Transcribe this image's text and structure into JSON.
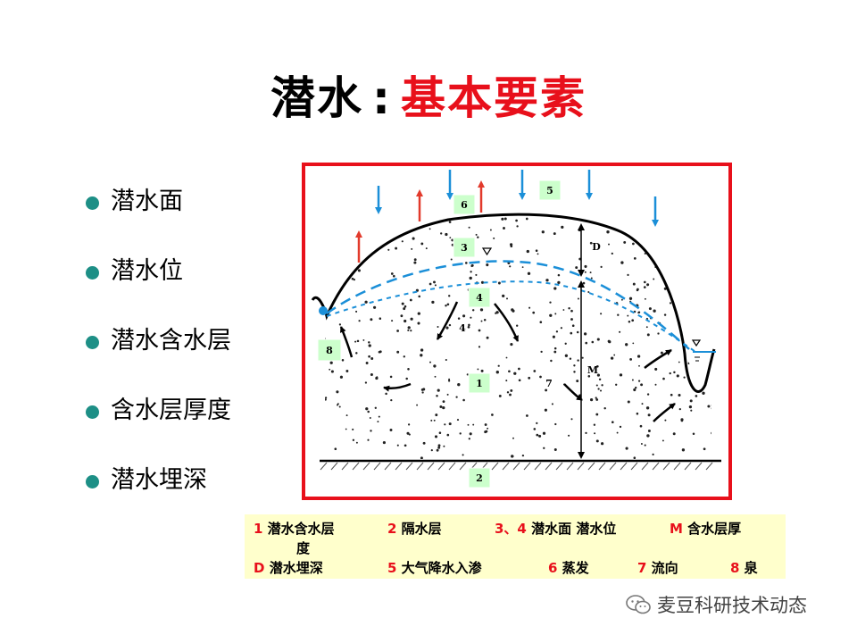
{
  "title": {
    "part1": "潜水",
    "separator": ":",
    "part2": "基本要素"
  },
  "bullets": [
    "潜水面",
    "潜水位",
    "潜水含水层",
    "含水层厚度",
    "潜水埋深"
  ],
  "diagram": {
    "labels": {
      "l1": "1",
      "l2": "2",
      "l3": "3",
      "l4": "4",
      "l4b": "4",
      "l5": "5",
      "l6": "6",
      "l7": "7",
      "l8": "8",
      "d": "D",
      "m": "M"
    }
  },
  "legend": {
    "items": [
      {
        "num": "1",
        "text": "潜水含水层"
      },
      {
        "num": "2",
        "text": "隔水层"
      },
      {
        "num": "3、4",
        "text": "潜水面 潜水位"
      },
      {
        "num": "M",
        "text": "含水层厚"
      },
      {
        "num": "",
        "text": "度"
      },
      {
        "num": "D",
        "text": "潜水埋深"
      },
      {
        "num": "5",
        "text": "大气降水入渗"
      },
      {
        "num": "6",
        "text": "蒸发"
      },
      {
        "num": "7",
        "text": "流向"
      },
      {
        "num": "8",
        "text": "泉"
      }
    ]
  },
  "watermark": {
    "text": "麦豆科研技术动态",
    "icon": "wechat-icon"
  },
  "colors": {
    "accent_red": "#e8101b",
    "bullet_teal": "#1d8f86",
    "label_green": "#ccffcc",
    "water_blue": "#1b8fd8",
    "legend_bg": "#ffffcc"
  }
}
